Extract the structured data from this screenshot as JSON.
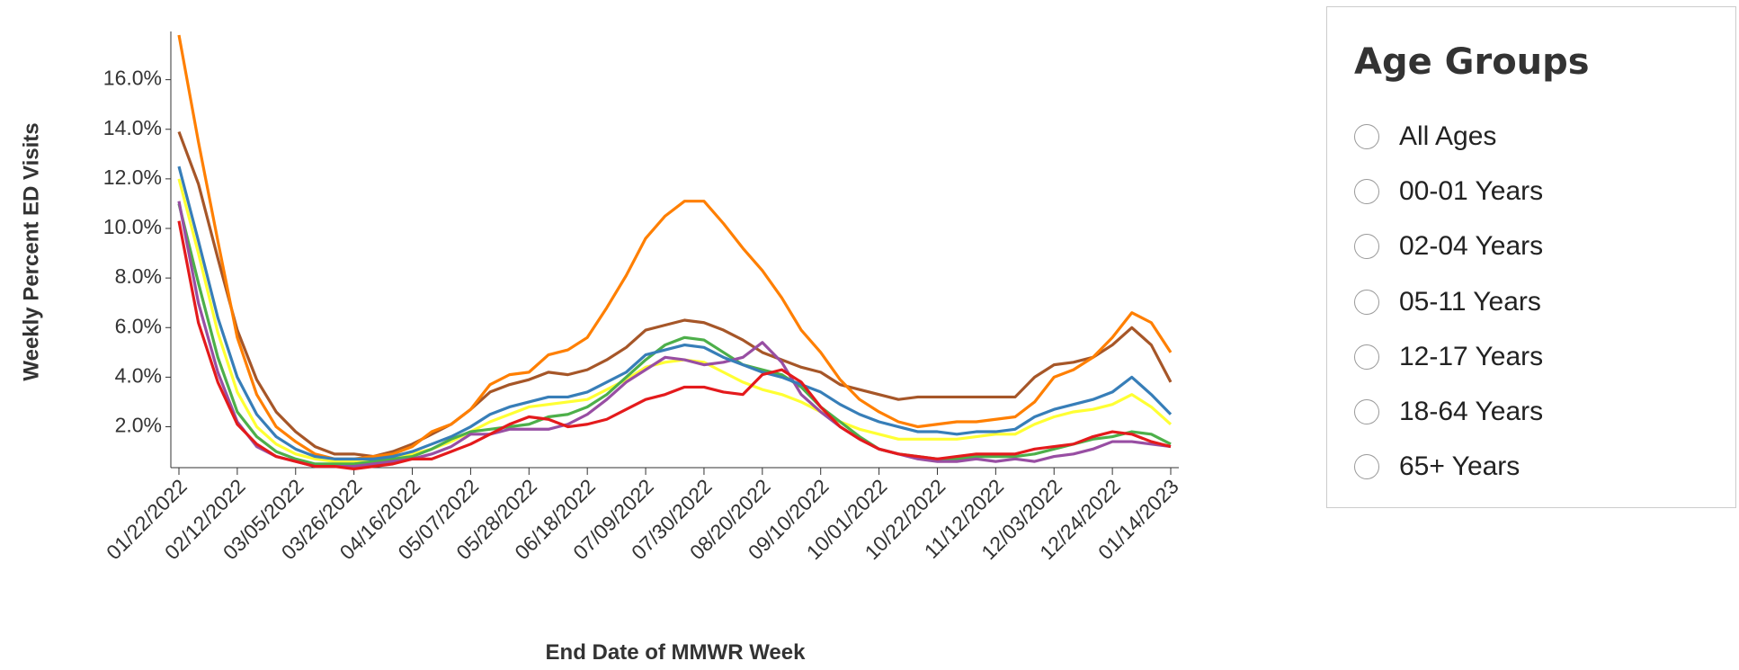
{
  "chart_data": {
    "type": "line",
    "y_label": "Weekly Percent ED Visits",
    "x_label": "End Date of MMWR Week",
    "categories": [
      "01/22/2022",
      null,
      null,
      "02/12/2022",
      null,
      null,
      "03/05/2022",
      null,
      null,
      "03/26/2022",
      null,
      null,
      "04/16/2022",
      null,
      null,
      "05/07/2022",
      null,
      null,
      "05/28/2022",
      null,
      null,
      "06/18/2022",
      null,
      null,
      "07/09/2022",
      null,
      null,
      "07/30/2022",
      null,
      null,
      "08/20/2022",
      null,
      null,
      "09/10/2022",
      null,
      null,
      "10/01/2022",
      null,
      null,
      "10/22/2022",
      null,
      null,
      "11/12/2022",
      null,
      null,
      "12/03/2022",
      null,
      null,
      "12/24/2022",
      null,
      null,
      "01/14/2023"
    ],
    "ylim": [
      0.35,
      17.8
    ],
    "yticks": [
      {
        "value": 2,
        "label": "2.0%"
      },
      {
        "value": 4,
        "label": "4.0%"
      },
      {
        "value": 6,
        "label": "6.0%"
      },
      {
        "value": 8,
        "label": "8.0%"
      },
      {
        "value": 10,
        "label": "10.0%"
      },
      {
        "value": 12,
        "label": "12.0%"
      },
      {
        "value": 14,
        "label": "14.0%"
      },
      {
        "value": 16,
        "label": "16.0%"
      }
    ],
    "series": [
      {
        "color": "#a65628",
        "values": [
          13.9,
          11.8,
          8.8,
          5.9,
          3.9,
          2.6,
          1.8,
          1.2,
          0.9,
          0.9,
          0.8,
          1.0,
          1.3,
          1.7,
          2.1,
          2.7,
          3.4,
          3.7,
          3.9,
          4.2,
          4.1,
          4.3,
          4.7,
          5.2,
          5.9,
          6.1,
          6.3,
          6.2,
          5.9,
          5.5,
          5.0,
          4.7,
          4.4,
          4.2,
          3.7,
          3.5,
          3.3,
          3.1,
          3.2,
          3.2,
          3.2,
          3.2,
          3.2,
          3.2,
          4.0,
          4.5,
          4.6,
          4.8,
          5.3,
          6.0,
          5.3,
          3.8
        ]
      },
      {
        "color": "#ff7f00",
        "values": [
          17.8,
          13.5,
          9.5,
          5.6,
          3.3,
          2.0,
          1.4,
          0.9,
          0.7,
          0.7,
          0.8,
          0.9,
          1.2,
          1.8,
          2.1,
          2.7,
          3.7,
          4.1,
          4.2,
          4.9,
          5.1,
          5.6,
          6.8,
          8.1,
          9.6,
          10.5,
          11.1,
          11.1,
          10.2,
          9.2,
          8.3,
          7.2,
          5.9,
          5.0,
          3.9,
          3.1,
          2.6,
          2.2,
          2.0,
          2.1,
          2.2,
          2.2,
          2.3,
          2.4,
          3.0,
          4.0,
          4.3,
          4.8,
          5.6,
          6.6,
          6.2,
          5.0
        ]
      },
      {
        "color": "#ffff33",
        "values": [
          12.0,
          9.0,
          5.8,
          3.4,
          2.0,
          1.3,
          0.9,
          0.7,
          0.6,
          0.6,
          0.6,
          0.7,
          0.9,
          1.1,
          1.4,
          1.8,
          2.2,
          2.5,
          2.8,
          2.9,
          3.0,
          3.1,
          3.5,
          3.9,
          4.4,
          4.6,
          4.7,
          4.6,
          4.2,
          3.8,
          3.5,
          3.3,
          3.0,
          2.6,
          2.2,
          1.9,
          1.7,
          1.5,
          1.5,
          1.5,
          1.5,
          1.6,
          1.7,
          1.7,
          2.1,
          2.4,
          2.6,
          2.7,
          2.9,
          3.3,
          2.8,
          2.1
        ]
      },
      {
        "color": "#4daf4a",
        "values": [
          11.0,
          7.8,
          4.8,
          2.6,
          1.6,
          1.0,
          0.7,
          0.5,
          0.5,
          0.5,
          0.6,
          0.7,
          0.8,
          1.1,
          1.5,
          1.8,
          1.9,
          2.0,
          2.1,
          2.4,
          2.5,
          2.8,
          3.3,
          4.0,
          4.7,
          5.3,
          5.6,
          5.5,
          5.0,
          4.5,
          4.3,
          4.1,
          3.6,
          2.8,
          2.2,
          1.6,
          1.1,
          0.9,
          0.8,
          0.7,
          0.7,
          0.8,
          0.8,
          0.8,
          0.9,
          1.1,
          1.3,
          1.5,
          1.6,
          1.8,
          1.7,
          1.3
        ]
      },
      {
        "color": "#984ea3",
        "values": [
          11.1,
          7.0,
          4.2,
          2.2,
          1.2,
          0.8,
          0.6,
          0.4,
          0.4,
          0.4,
          0.5,
          0.6,
          0.7,
          0.9,
          1.2,
          1.7,
          1.7,
          1.9,
          1.9,
          1.9,
          2.1,
          2.5,
          3.1,
          3.8,
          4.3,
          4.8,
          4.7,
          4.5,
          4.6,
          4.8,
          5.4,
          4.6,
          3.3,
          2.6,
          2.0,
          1.5,
          1.1,
          0.9,
          0.7,
          0.6,
          0.6,
          0.7,
          0.6,
          0.7,
          0.6,
          0.8,
          0.9,
          1.1,
          1.4,
          1.4,
          1.3,
          1.2
        ]
      },
      {
        "color": "#377eb8",
        "values": [
          12.5,
          9.5,
          6.4,
          4.0,
          2.5,
          1.6,
          1.1,
          0.8,
          0.7,
          0.7,
          0.7,
          0.8,
          1.0,
          1.3,
          1.6,
          2.0,
          2.5,
          2.8,
          3.0,
          3.2,
          3.2,
          3.4,
          3.8,
          4.2,
          4.9,
          5.1,
          5.3,
          5.2,
          4.8,
          4.5,
          4.2,
          4.0,
          3.7,
          3.4,
          2.9,
          2.5,
          2.2,
          2.0,
          1.8,
          1.8,
          1.7,
          1.8,
          1.8,
          1.9,
          2.4,
          2.7,
          2.9,
          3.1,
          3.4,
          4.0,
          3.3,
          2.5
        ]
      },
      {
        "color": "#e41a1c",
        "values": [
          10.3,
          6.2,
          3.8,
          2.1,
          1.3,
          0.8,
          0.6,
          0.4,
          0.4,
          0.3,
          0.4,
          0.5,
          0.7,
          0.7,
          1.0,
          1.3,
          1.7,
          2.1,
          2.4,
          2.3,
          2.0,
          2.1,
          2.3,
          2.7,
          3.1,
          3.3,
          3.6,
          3.6,
          3.4,
          3.3,
          4.1,
          4.3,
          3.8,
          2.8,
          2.0,
          1.5,
          1.1,
          0.9,
          0.8,
          0.7,
          0.8,
          0.9,
          0.9,
          0.9,
          1.1,
          1.2,
          1.3,
          1.6,
          1.8,
          1.7,
          1.4,
          1.2
        ]
      }
    ]
  },
  "panel": {
    "title": "Age Groups",
    "options": [
      "All Ages",
      "00-01 Years",
      "02-04 Years",
      "05-11 Years",
      "12-17 Years",
      "18-64 Years",
      "65+ Years"
    ]
  }
}
